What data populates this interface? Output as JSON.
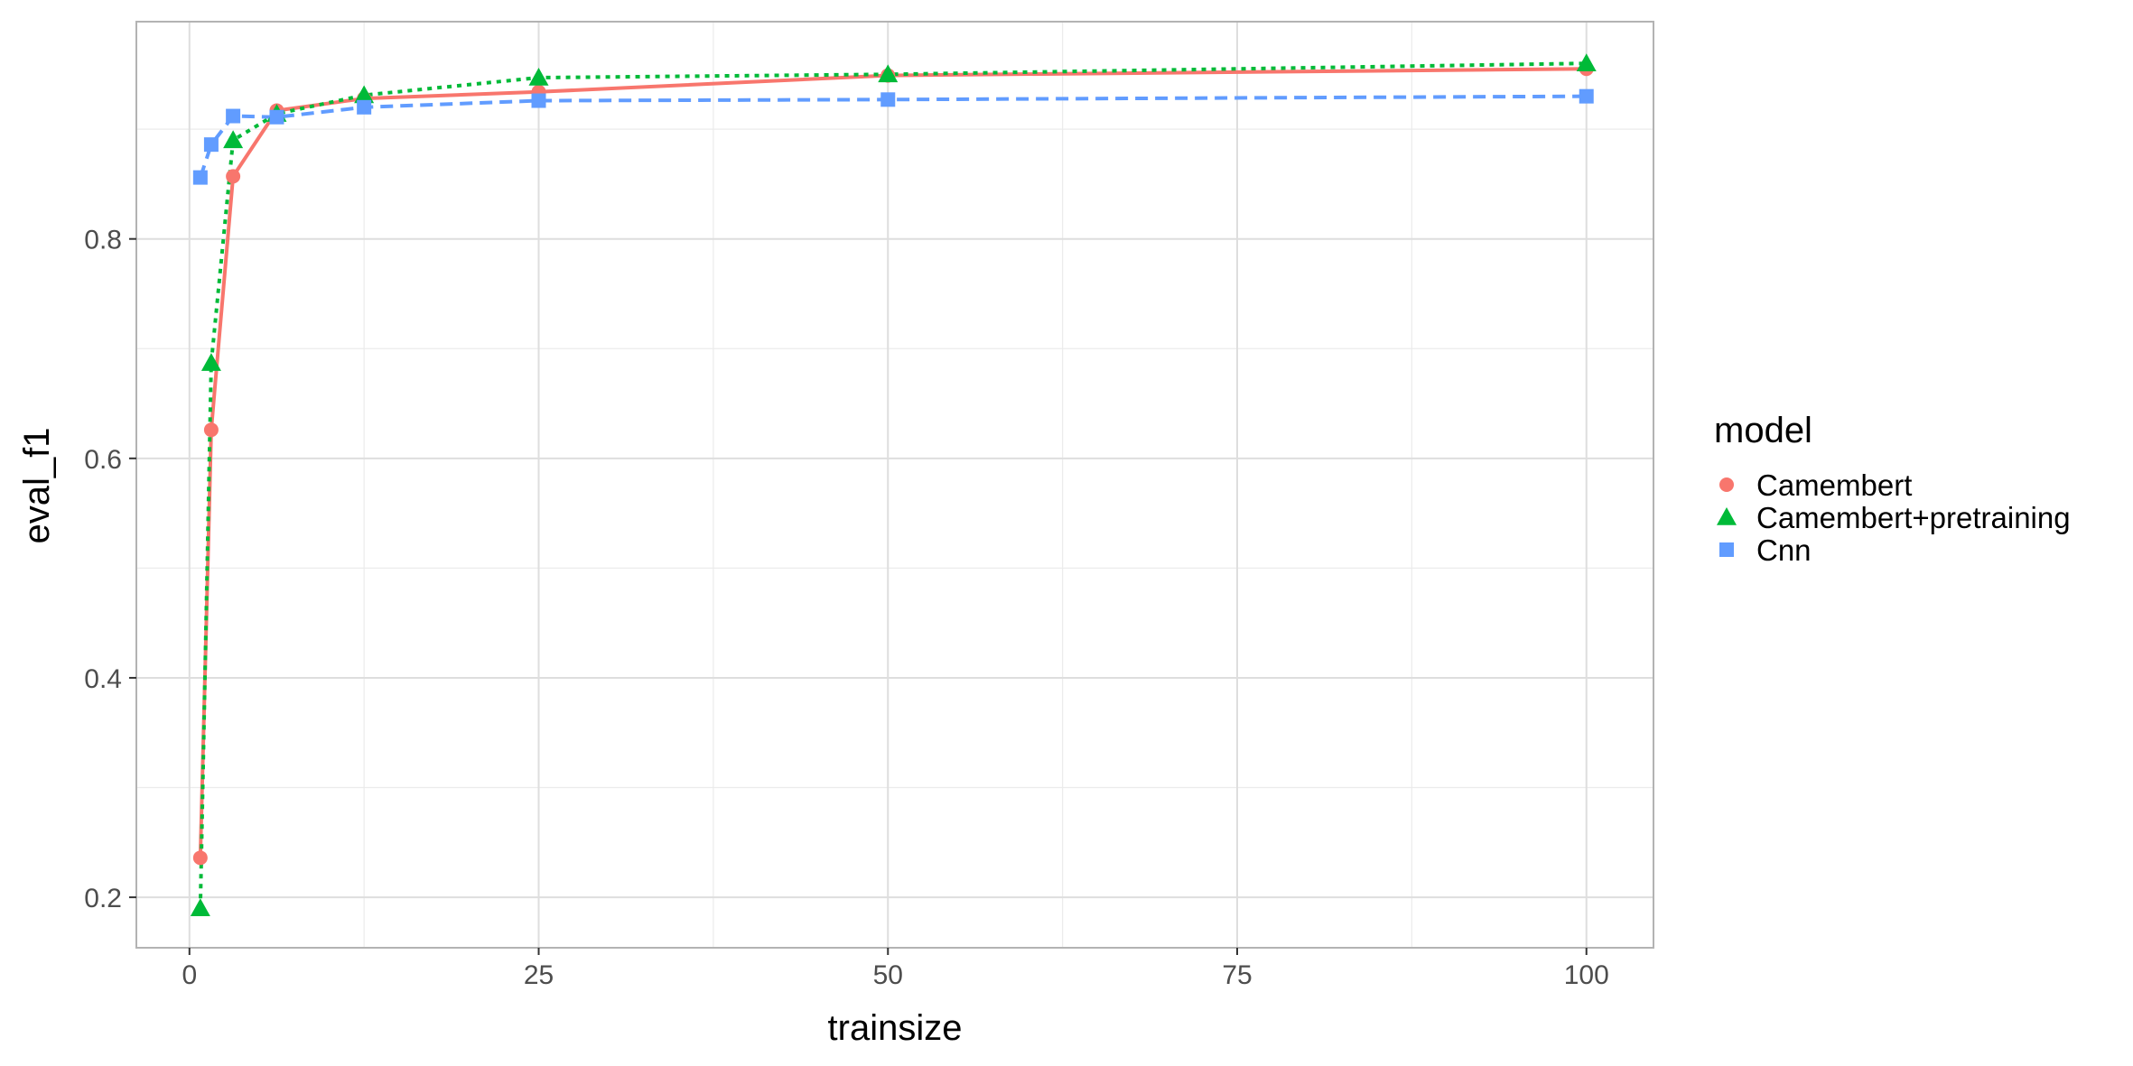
{
  "chart_data": {
    "type": "line",
    "title": "",
    "xlabel": "trainsize",
    "ylabel": "eval_f1",
    "xlim": [
      -3.8,
      104.8
    ],
    "ylim": [
      0.154,
      0.998
    ],
    "x_ticks": [
      0,
      25,
      50,
      75,
      100
    ],
    "x_tick_labels": [
      "0",
      "25",
      "50",
      "75",
      "100"
    ],
    "y_ticks": [
      0.2,
      0.4,
      0.6,
      0.8
    ],
    "y_tick_labels": [
      "0.2",
      "0.4",
      "0.6",
      "0.8"
    ],
    "grid": true,
    "legend": {
      "title": "model",
      "position": "right"
    },
    "series": [
      {
        "name": "Camembert",
        "color": "#F8766D",
        "marker": "circle",
        "line_style": "solid",
        "x": [
          0.78,
          1.56,
          3.125,
          6.25,
          12.5,
          25,
          50,
          100
        ],
        "y": [
          0.236,
          0.626,
          0.857,
          0.917,
          0.928,
          0.934,
          0.949,
          0.955
        ]
      },
      {
        "name": "Camembert+pretraining",
        "color": "#00BA38",
        "marker": "triangle",
        "line_style": "dotted",
        "x": [
          0.78,
          1.56,
          3.125,
          6.25,
          12.5,
          25,
          50,
          100
        ],
        "y": [
          0.19,
          0.687,
          0.89,
          0.914,
          0.931,
          0.947,
          0.95,
          0.96
        ]
      },
      {
        "name": "Cnn",
        "color": "#619CFF",
        "marker": "square",
        "line_style": "dashed",
        "x": [
          0.78,
          1.56,
          3.125,
          6.25,
          12.5,
          25,
          50,
          100
        ],
        "y": [
          0.856,
          0.886,
          0.912,
          0.911,
          0.92,
          0.926,
          0.927,
          0.93
        ]
      }
    ]
  }
}
